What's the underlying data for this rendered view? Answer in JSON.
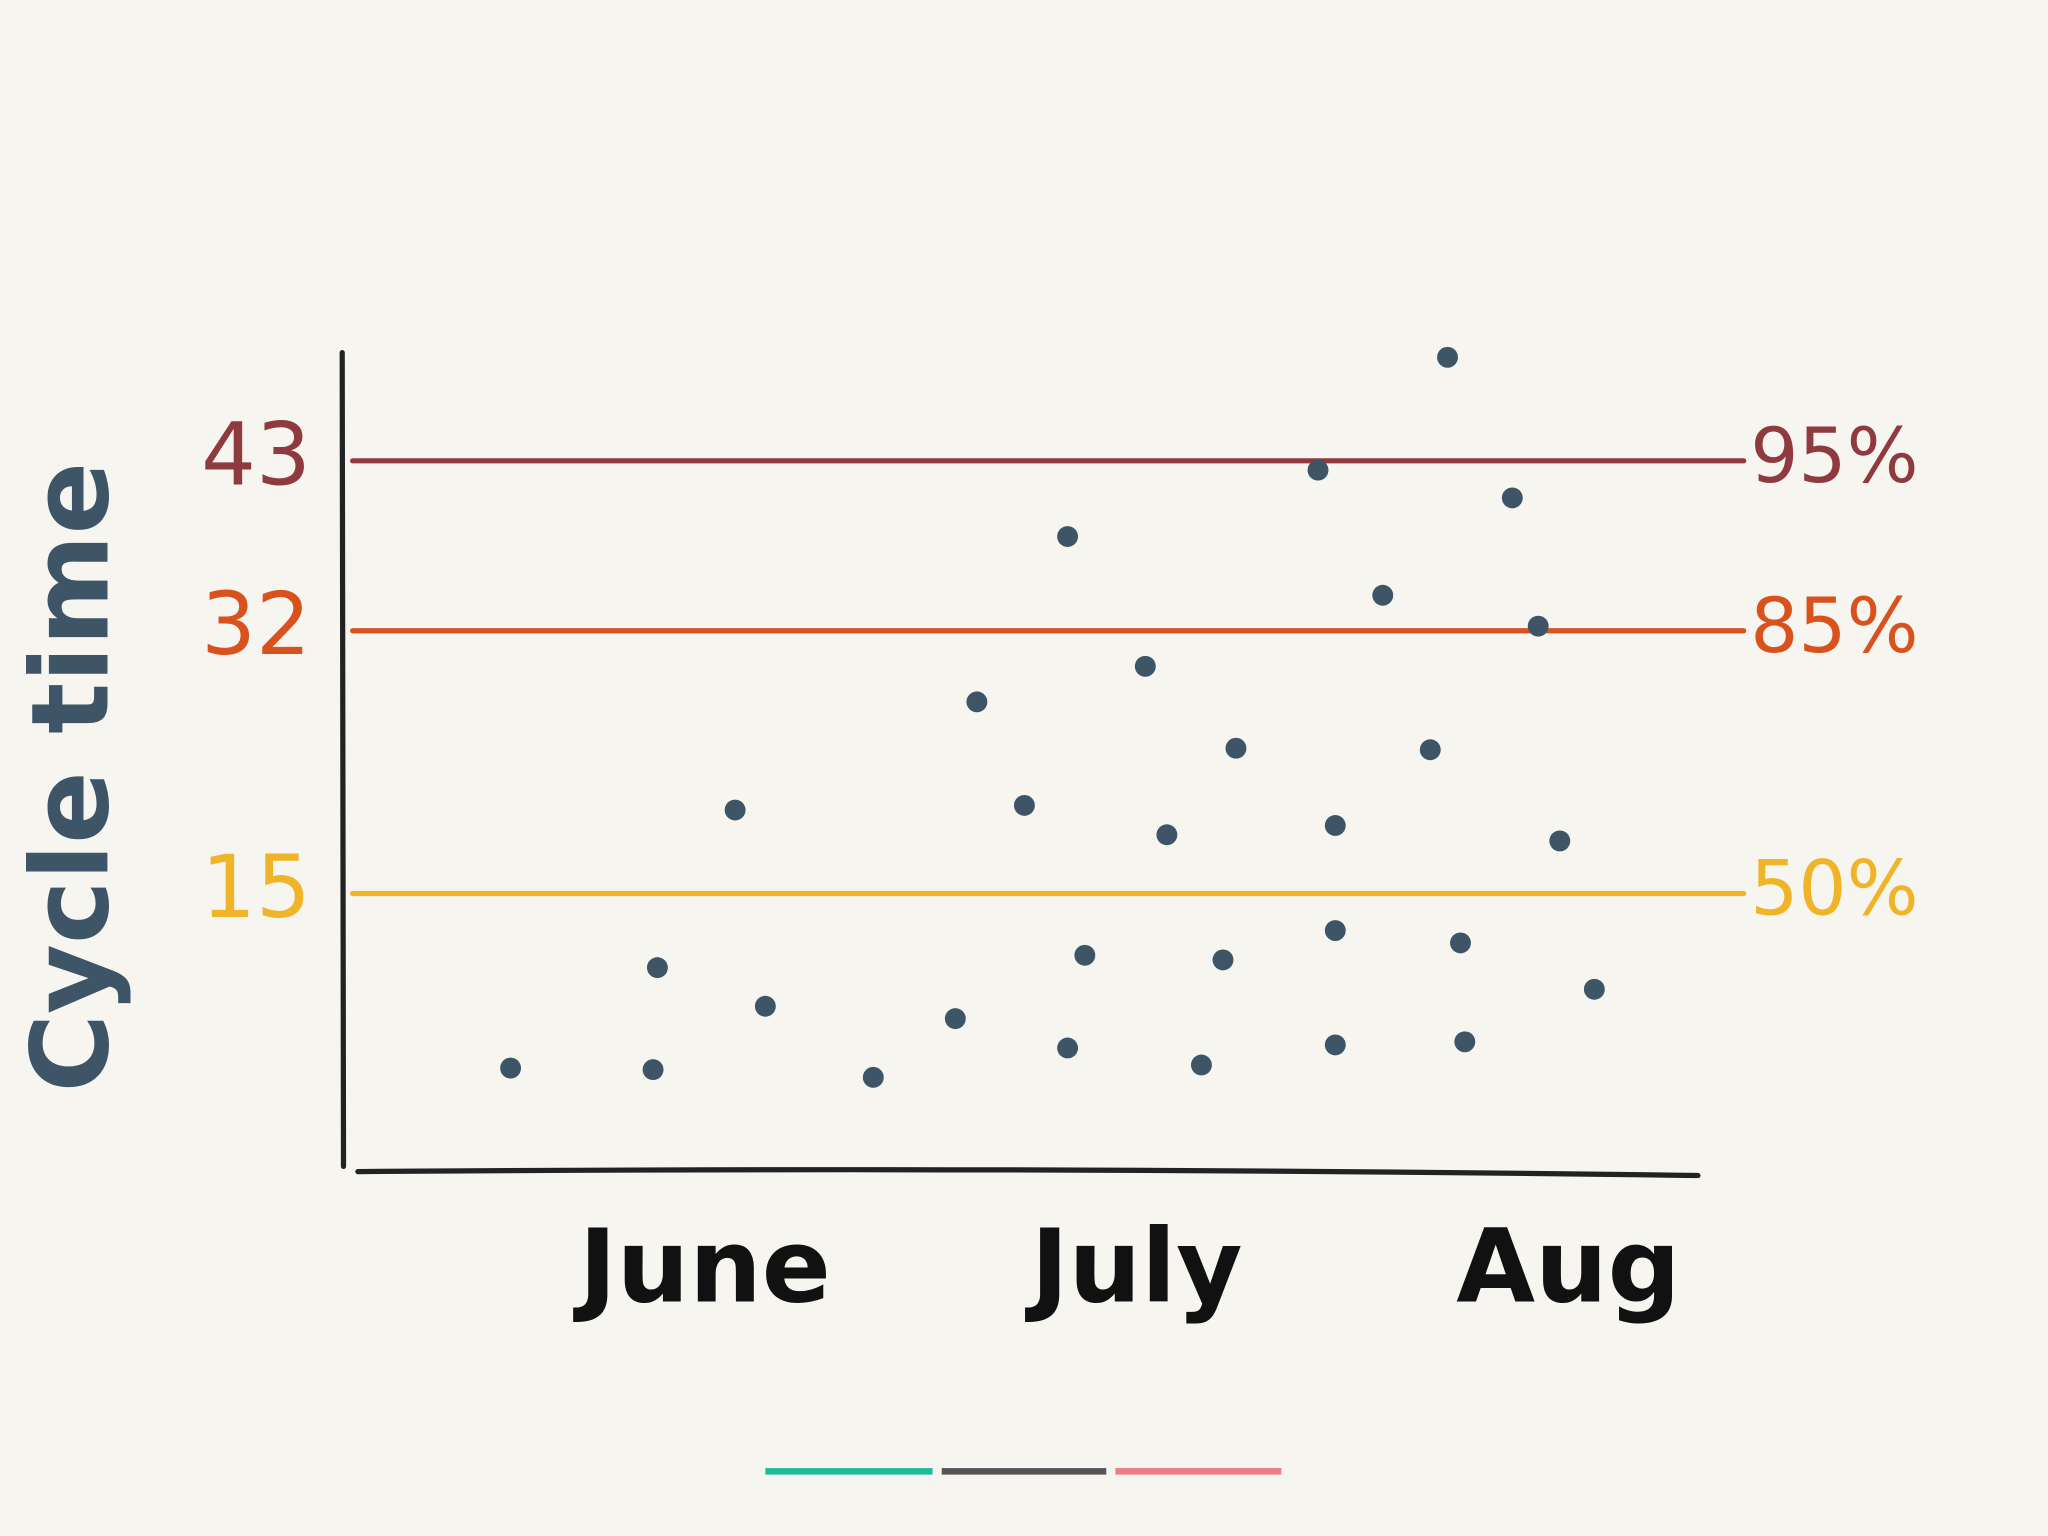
{
  "chart_data": {
    "type": "scatter",
    "y_label": "Cycle time",
    "color": "#3d5566",
    "xlim": [
      0.16,
      3.3
    ],
    "ylim": [
      -3,
      50
    ],
    "xticks": [
      {
        "value": 1,
        "label": "June"
      },
      {
        "value": 2,
        "label": "July"
      },
      {
        "value": 3,
        "label": "Aug"
      }
    ],
    "lines": [
      {
        "y": 43,
        "label": "95%",
        "color": "#8e3a3f"
      },
      {
        "y": 32,
        "label": "85%",
        "color": "#d9521e"
      },
      {
        "y": 15,
        "label": "50%",
        "color": "#f0b429"
      }
    ],
    "x": [
      0.55,
      0.88,
      0.89,
      1.14,
      1.07,
      1.39,
      1.58,
      1.63,
      1.74,
      1.84,
      1.88,
      1.84,
      2.02,
      2.07,
      2.2,
      2.15,
      2.23,
      2.42,
      2.46,
      2.46,
      2.46,
      2.57,
      2.68,
      2.72,
      2.75,
      2.76,
      2.87,
      2.93,
      2.98,
      3.06
    ],
    "values": [
      3.7,
      3.6,
      10.2,
      7.7,
      20.4,
      3.1,
      6.9,
      27.4,
      20.7,
      38.1,
      11.0,
      5.0,
      29.7,
      18.8,
      10.7,
      3.9,
      24.4,
      42.4,
      19.4,
      12.6,
      5.2,
      34.3,
      24.3,
      49.7,
      11.8,
      5.4,
      40.6,
      32.3,
      18.4,
      8.8
    ]
  }
}
